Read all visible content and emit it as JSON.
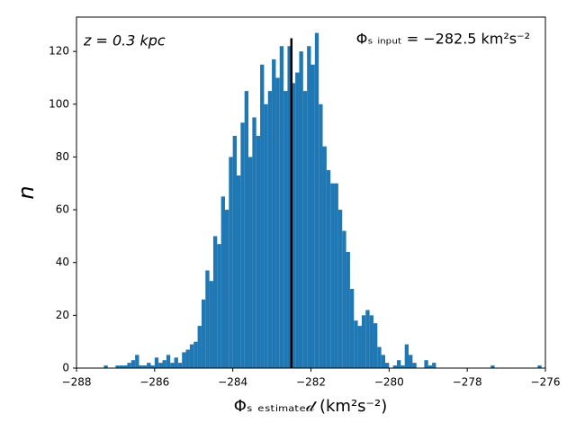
{
  "chart_data": {
    "type": "histogram",
    "xlabel": "Φₛ ₑₛₜᵢₘₐₜₑ𝒹 (km²s⁻²)",
    "ylabel": "n",
    "annotations": [
      "z = 0.3 kpc",
      "Φₛ ᵢₙₚᵤₜ = −282.5 km²s⁻²"
    ],
    "vline": {
      "x": -282.5,
      "ymax": 125,
      "color": "#000000"
    },
    "color": "#1f77b4",
    "bins": [
      -287.3,
      -287.2,
      -287.1,
      -287,
      -286.9,
      -286.8,
      -286.7,
      -286.6,
      -286.5,
      -286.4,
      -286.3,
      -286.2,
      -286.1,
      -286,
      -285.9,
      -285.8,
      -285.7,
      -285.6,
      -285.5,
      -285.4,
      -285.3,
      -285.2,
      -285.1,
      -285,
      -284.9,
      -284.8,
      -284.7,
      -284.6,
      -284.5,
      -284.4,
      -284.3,
      -284.2,
      -284.1,
      -284,
      -283.9,
      -283.8,
      -283.7,
      -283.6,
      -283.5,
      -283.4,
      -283.3,
      -283.2,
      -283.1,
      -283,
      -282.9,
      -282.8,
      -282.7,
      -282.6,
      -282.5,
      -282.4,
      -282.3,
      -282.2,
      -282.1,
      -282,
      -281.9,
      -281.8,
      -281.7,
      -281.6,
      -281.5,
      -281.4,
      -281.3,
      -281.2,
      -281.1,
      -281,
      -280.9,
      -280.8,
      -280.7,
      -280.6,
      -280.5,
      -280.4,
      -280.3,
      -280.2,
      -280.1,
      -280,
      -279.9,
      -279.8,
      -279.7,
      -279.6,
      -279.5,
      -279.4,
      -279.3,
      -279.2,
      -279.1,
      -279,
      -278.9,
      -278.8,
      -278.7,
      -278.6,
      -278.5,
      -278.4,
      -278.3,
      -278.2,
      -278.1,
      -278,
      -277.9,
      -277.8,
      -277.7,
      -277.6,
      -277.5,
      -277.4,
      -277.3,
      -277.2,
      -277.1,
      -277,
      -276.9,
      -276.8,
      -276.7,
      -276.6,
      -276.5,
      -276.4,
      -276.3,
      -276.2,
      -276.1
    ],
    "values": [
      1,
      0,
      0,
      1,
      1,
      1,
      2,
      3,
      5,
      1,
      1,
      2,
      1,
      4,
      2,
      3,
      5,
      2,
      4,
      2,
      6,
      7,
      9,
      10,
      16,
      26,
      37,
      33,
      50,
      47,
      65,
      60,
      80,
      88,
      73,
      93,
      105,
      80,
      95,
      88,
      115,
      100,
      105,
      117,
      110,
      122,
      105,
      122,
      108,
      112,
      120,
      105,
      122,
      115,
      127,
      100,
      84,
      75,
      70,
      70,
      60,
      52,
      44,
      30,
      18,
      16,
      20,
      22,
      20,
      17,
      8,
      5,
      2,
      0,
      1,
      3,
      1,
      9,
      5,
      2,
      0,
      0,
      3,
      1,
      2,
      0,
      0,
      0,
      0,
      0,
      0,
      0,
      0,
      0,
      0,
      0,
      0,
      0,
      0,
      1,
      0,
      0,
      0,
      0,
      0,
      0,
      0,
      0,
      0,
      0,
      0,
      1
    ],
    "xlim": [
      -288,
      -276
    ],
    "ylim": [
      0,
      133
    ],
    "xticks": [
      {
        "value": -288,
        "label": "−288"
      },
      {
        "value": -286,
        "label": "−286"
      },
      {
        "value": -284,
        "label": "−284"
      },
      {
        "value": -282,
        "label": "−282"
      },
      {
        "value": -280,
        "label": "−280"
      },
      {
        "value": -278,
        "label": "−278"
      },
      {
        "value": -276,
        "label": "−276"
      }
    ],
    "yticks": [
      0,
      20,
      40,
      60,
      80,
      100,
      120
    ]
  }
}
